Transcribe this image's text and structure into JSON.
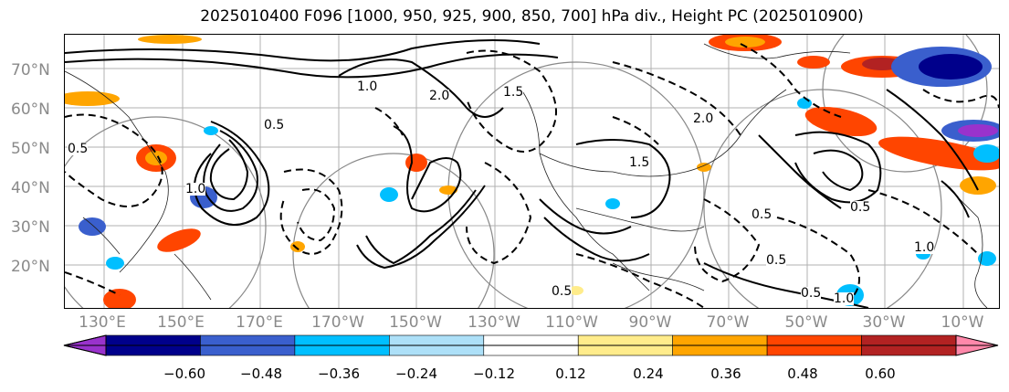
{
  "title": "2025010400 F096 [1000, 950, 925, 900, 850, 700] hPa div., Height PC (2025010900)",
  "lat_labels": [
    "70°N",
    "60°N",
    "50°N",
    "40°N",
    "30°N",
    "20°N"
  ],
  "lon_labels": [
    "130°E",
    "150°E",
    "170°E",
    "170°W",
    "150°W",
    "130°W",
    "110°W",
    "90°W",
    "70°W",
    "50°W",
    "30°W",
    "10°W"
  ],
  "colorbar": {
    "ticks": [
      "−0.60",
      "−0.48",
      "−0.36",
      "−0.24",
      "−0.12",
      "0.12",
      "0.24",
      "0.36",
      "0.48",
      "0.60"
    ],
    "colors": [
      "#9932CC",
      "#00008B",
      "#3A5FCD",
      "#00BFFF",
      "#ADE0F8",
      "#FFFFFF",
      "#FFEC8B",
      "#FFA500",
      "#FF4500",
      "#B22222",
      "#FF88AA"
    ]
  },
  "contour_labels": [
    "1.0",
    "0.5",
    "2.0",
    "1.5",
    "0.5",
    "2.0",
    "0.5",
    "1.0",
    "0.5",
    "1.5",
    "0.5",
    "1.0",
    "0.5",
    "1.0",
    "0.5"
  ]
}
